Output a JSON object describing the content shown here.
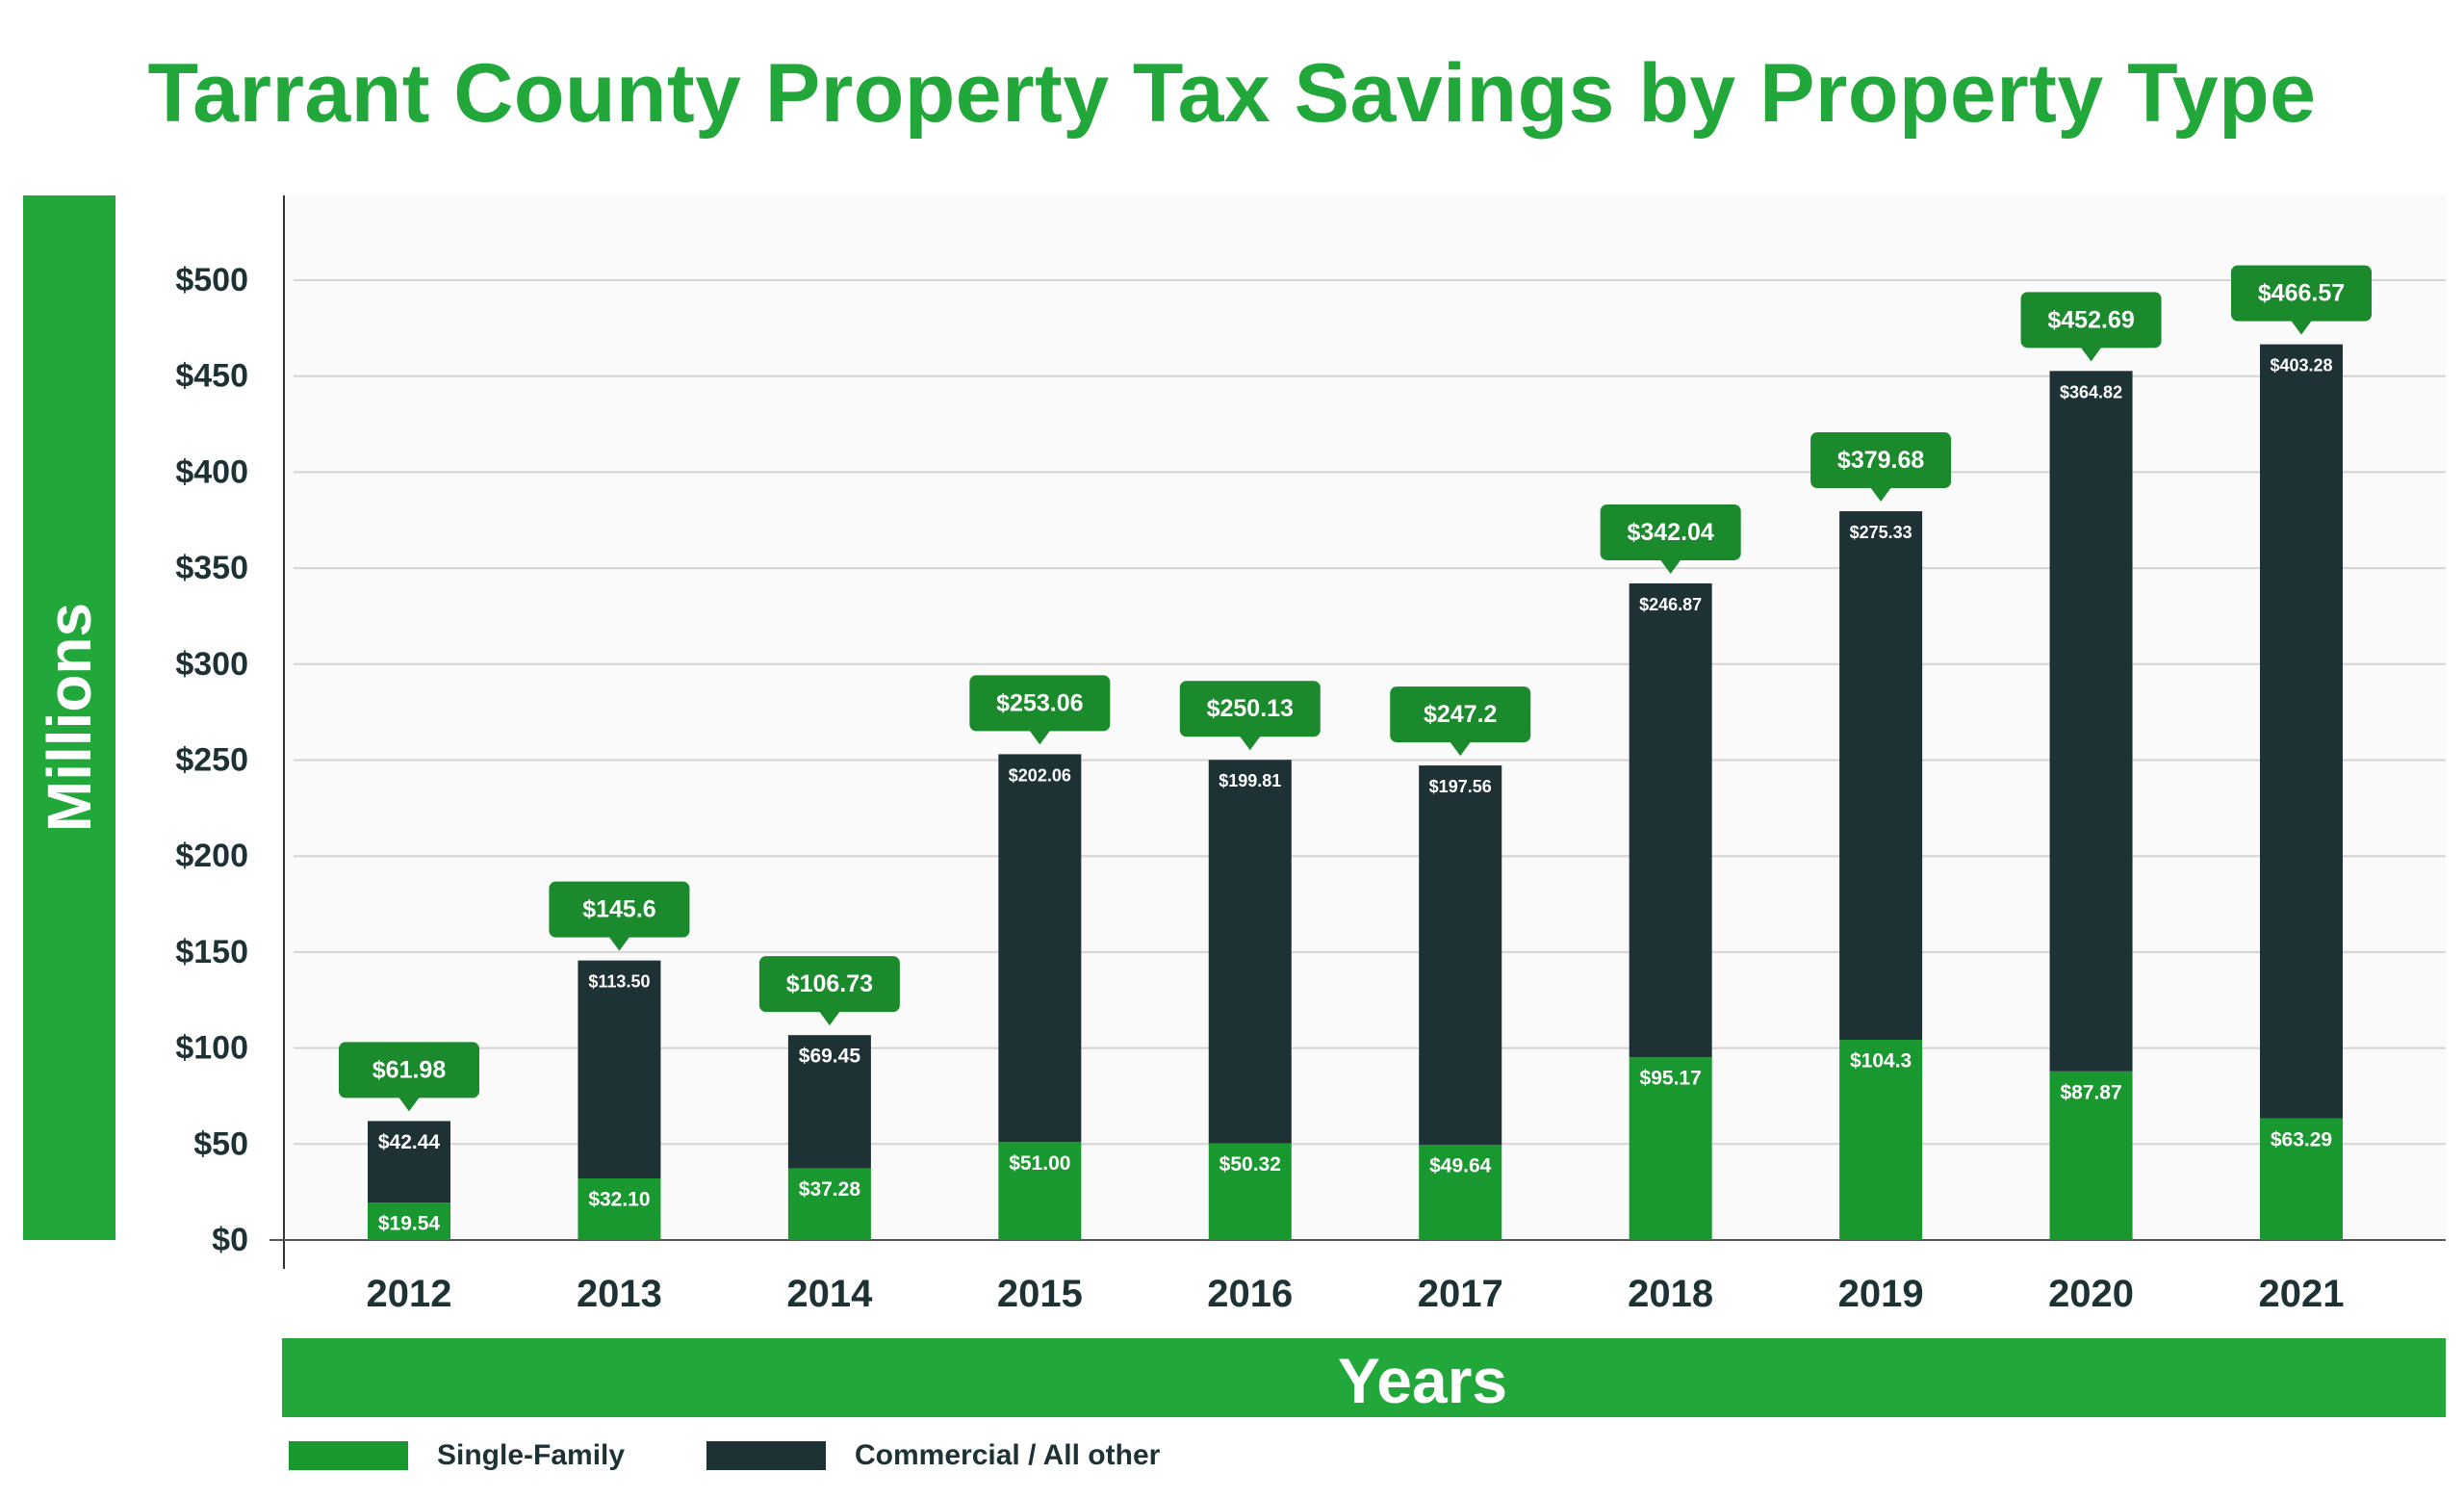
{
  "chart_data": {
    "type": "bar",
    "stacked": true,
    "title": "Tarrant County Property Tax Savings by Property Type",
    "xlabel": "Years",
    "ylabel": "Millions",
    "categories": [
      "2012",
      "2013",
      "2014",
      "2015",
      "2016",
      "2017",
      "2018",
      "2019",
      "2020",
      "2021"
    ],
    "ylim": [
      0,
      550
    ],
    "yticks": [
      0,
      50,
      100,
      150,
      200,
      250,
      300,
      350,
      400,
      450,
      500
    ],
    "ytick_labels": [
      "$0",
      "$50",
      "$100",
      "$150",
      "$200",
      "$250",
      "$300",
      "$350",
      "$400",
      "$450",
      "$500"
    ],
    "grid": true,
    "legend_position": "bottom-left",
    "series": [
      {
        "name": "Single-Family",
        "color": "#1a9830",
        "values": [
          19.54,
          32.1,
          37.28,
          51.0,
          50.32,
          49.64,
          95.17,
          104.3,
          87.87,
          63.29
        ],
        "labels": [
          "$19.54",
          "$32.10",
          "$37.28",
          "$51.00",
          "$50.32",
          "$49.64",
          "$95.17",
          "$104.3",
          "$87.87",
          "$63.29"
        ]
      },
      {
        "name": "Commercial / All other",
        "color": "#1e3236",
        "values": [
          42.44,
          113.5,
          69.45,
          202.06,
          199.81,
          197.56,
          246.87,
          275.33,
          364.82,
          403.28
        ],
        "labels": [
          "$42.44",
          "$113.50",
          "$69.45",
          "$202.06",
          "$199.81",
          "$197.56",
          "$246.87",
          "$275.33",
          "$364.82",
          "$403.28"
        ]
      }
    ],
    "totals": [
      "$61.98",
      "$145.6",
      "$106.73",
      "$253.06",
      "$250.13",
      "$247.2",
      "$342.04",
      "$379.68",
      "$452.69",
      "$466.57"
    ],
    "colors": {
      "title": "#22a83a",
      "banner": "#22a83a",
      "total_callout": "#1a8a2c",
      "grid": "#d4d4d4",
      "plot_background": "#fafafa",
      "tick_text": "#1e3236"
    }
  }
}
